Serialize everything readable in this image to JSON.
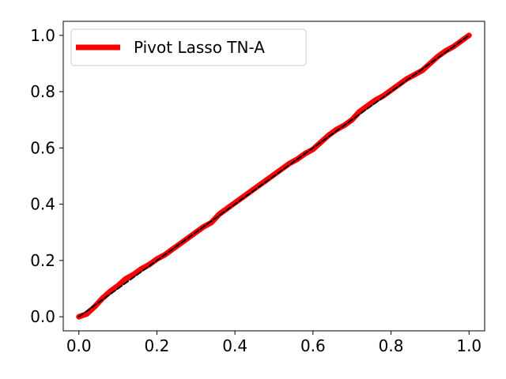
{
  "chart_data": {
    "type": "line",
    "title": "",
    "xlabel": "",
    "ylabel": "",
    "xlim": [
      -0.04,
      1.04
    ],
    "ylim": [
      -0.05,
      1.05
    ],
    "xticks": [
      0.0,
      0.2,
      0.4,
      0.6,
      0.8,
      1.0
    ],
    "xtick_labels": [
      "0.0",
      "0.2",
      "0.4",
      "0.6",
      "0.8",
      "1.0"
    ],
    "yticks": [
      0.0,
      0.2,
      0.4,
      0.6,
      0.8,
      1.0
    ],
    "ytick_labels": [
      "0.0",
      "0.2",
      "0.4",
      "0.6",
      "0.8",
      "1.0"
    ],
    "grid": false,
    "legend_position": "top-left",
    "series": [
      {
        "name": "Pivot Lasso TN-A",
        "color": "#ff0000",
        "x": [
          0.0,
          0.02,
          0.04,
          0.06,
          0.08,
          0.1,
          0.12,
          0.14,
          0.16,
          0.18,
          0.2,
          0.22,
          0.24,
          0.26,
          0.28,
          0.3,
          0.32,
          0.34,
          0.36,
          0.38,
          0.4,
          0.42,
          0.44,
          0.46,
          0.48,
          0.5,
          0.52,
          0.54,
          0.56,
          0.58,
          0.6,
          0.62,
          0.64,
          0.66,
          0.68,
          0.7,
          0.72,
          0.74,
          0.76,
          0.78,
          0.8,
          0.82,
          0.84,
          0.86,
          0.88,
          0.9,
          0.92,
          0.94,
          0.96,
          0.98,
          1.0
        ],
        "y": [
          0.0,
          0.01,
          0.035,
          0.065,
          0.09,
          0.11,
          0.135,
          0.15,
          0.17,
          0.185,
          0.205,
          0.22,
          0.24,
          0.26,
          0.28,
          0.3,
          0.32,
          0.335,
          0.365,
          0.385,
          0.405,
          0.425,
          0.445,
          0.465,
          0.485,
          0.505,
          0.525,
          0.545,
          0.56,
          0.58,
          0.595,
          0.62,
          0.645,
          0.665,
          0.68,
          0.7,
          0.73,
          0.75,
          0.77,
          0.785,
          0.805,
          0.825,
          0.845,
          0.86,
          0.875,
          0.9,
          0.925,
          0.945,
          0.96,
          0.98,
          1.0
        ]
      },
      {
        "name": "",
        "color": "#000000",
        "style": "dashed",
        "x": [
          0.0,
          1.0
        ],
        "y": [
          0.0,
          1.0
        ]
      }
    ]
  }
}
